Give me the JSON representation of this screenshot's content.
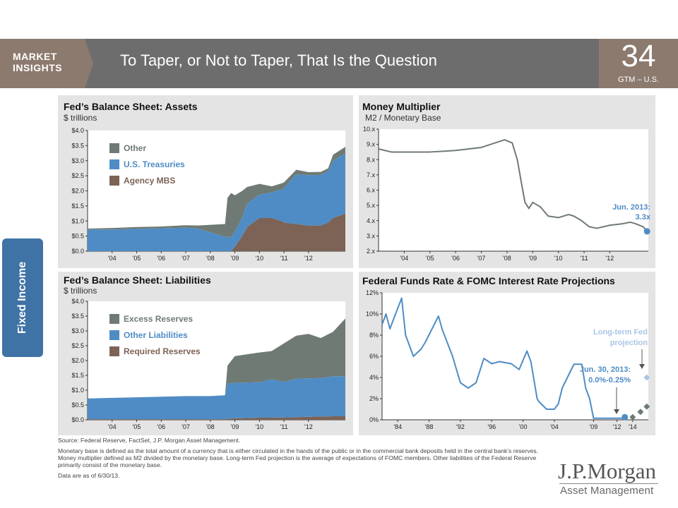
{
  "header": {
    "brand_line1": "MARKET",
    "brand_line2": "INSIGHTS",
    "title": "To Taper, or Not to Taper, That Is the Question",
    "page_number": "34",
    "page_tag": "GTM – U.S.",
    "colors": {
      "bar": "#6d6d6d",
      "accent": "#8c7a6e"
    }
  },
  "side_tab": {
    "label": "Fixed Income",
    "color": "#3f73a6"
  },
  "colors": {
    "gray": "#6f7a74",
    "blue": "#4f8cc5",
    "brown": "#7c6356",
    "panel_bg": "#e4e4e4"
  },
  "chart_data": [
    {
      "type": "area",
      "stacked": true,
      "title": "Fed’s Balance Sheet: Assets",
      "subtitle": "$ trillions",
      "x": [
        2003,
        2004,
        2005,
        2006,
        2007,
        2007.5,
        2008.6,
        2008.7,
        2008.85,
        2009,
        2009.3,
        2009.5,
        2010,
        2010.5,
        2010.9,
        2011,
        2011.5,
        2012,
        2012.5,
        2012.8,
        2013,
        2013.5
      ],
      "x_ticks": [
        "'04",
        "'05",
        "'06",
        "'07",
        "'08",
        "'09",
        "'10",
        "'11",
        "'12"
      ],
      "x_tick_values": [
        2004,
        2005,
        2006,
        2007,
        2008,
        2009,
        2010,
        2011,
        2012
      ],
      "y_ticks": [
        "$0.0",
        "$0.5",
        "$1.0",
        "$1.5",
        "$2.0",
        "$2.5",
        "$3.0",
        "$3.5",
        "$4.0"
      ],
      "ylim": [
        0,
        4
      ],
      "xlim": [
        2003,
        2013.5
      ],
      "series": [
        {
          "name": "Agency MBS",
          "color": "#7c6356",
          "values": [
            0,
            0,
            0,
            0,
            0,
            0,
            0,
            0,
            0,
            0.15,
            0.5,
            0.8,
            1.1,
            1.1,
            1.0,
            0.95,
            0.9,
            0.85,
            0.85,
            0.95,
            1.1,
            1.25
          ]
        },
        {
          "name": "U.S. Treasuries",
          "color": "#4f8cc5",
          "values": [
            0.72,
            0.72,
            0.74,
            0.76,
            0.78,
            0.75,
            0.48,
            0.47,
            0.48,
            0.5,
            0.62,
            0.78,
            0.78,
            0.85,
            1.05,
            1.15,
            1.65,
            1.67,
            1.68,
            1.7,
            1.9,
            1.99
          ]
        },
        {
          "name": "Other",
          "color": "#6f7a74",
          "values": [
            0.03,
            0.05,
            0.06,
            0.06,
            0.08,
            0.1,
            0.42,
            1.3,
            1.45,
            1.2,
            0.88,
            0.55,
            0.35,
            0.2,
            0.2,
            0.18,
            0.15,
            0.1,
            0.1,
            0.1,
            0.2,
            0.22
          ]
        }
      ]
    },
    {
      "type": "line",
      "title": "Money Multiplier",
      "subtitle": "M2 / Monetary Base",
      "x": [
        2003,
        2003.5,
        2004,
        2005,
        2006,
        2007,
        2007.9,
        2008.2,
        2008.4,
        2008.6,
        2008.7,
        2008.85,
        2009,
        2009.3,
        2009.6,
        2010,
        2010.4,
        2010.6,
        2010.9,
        2011.2,
        2011.5,
        2012,
        2012.5,
        2012.8,
        2013,
        2013.3,
        2013.45
      ],
      "y": [
        8.7,
        8.5,
        8.5,
        8.5,
        8.6,
        8.8,
        9.3,
        9.1,
        8.0,
        6.1,
        5.2,
        4.8,
        5.2,
        4.9,
        4.3,
        4.2,
        4.4,
        4.3,
        4.0,
        3.6,
        3.5,
        3.7,
        3.8,
        3.9,
        3.8,
        3.6,
        3.3
      ],
      "x_ticks": [
        "'04",
        "'05",
        "'06",
        "'07",
        "'08",
        "'09",
        "'10",
        "'11",
        "'12"
      ],
      "x_tick_values": [
        2004,
        2005,
        2006,
        2007,
        2008,
        2009,
        2010,
        2011,
        2012
      ],
      "y_ticks": [
        "2.x",
        "3.x",
        "4.x",
        "5.x",
        "6.x",
        "7.x",
        "8.x",
        "9.x",
        "10.x"
      ],
      "ylim": [
        2,
        10
      ],
      "xlim": [
        2003,
        2013.5
      ],
      "color": "#6f7a74",
      "annotation": {
        "line1": "Jun. 2013:",
        "line2": "3.3x",
        "x": 2013.45,
        "y": 3.3,
        "color": "#4f8cc5"
      }
    },
    {
      "type": "area",
      "stacked": true,
      "title": "Fed’s Balance Sheet: Liabilities",
      "subtitle": "$ trillions",
      "x": [
        2003,
        2004,
        2005,
        2006,
        2007,
        2008,
        2008.6,
        2008.7,
        2009,
        2009.5,
        2010,
        2010.5,
        2011,
        2011.5,
        2012,
        2012.5,
        2013,
        2013.5
      ],
      "x_ticks": [
        "'04",
        "'05",
        "'06",
        "'07",
        "'08",
        "'09",
        "'10",
        "'11",
        "'12"
      ],
      "x_tick_values": [
        2004,
        2005,
        2006,
        2007,
        2008,
        2009,
        2010,
        2011,
        2012
      ],
      "y_ticks": [
        "$0.0",
        "$0.5",
        "$1.0",
        "$1.5",
        "$2.0",
        "$2.5",
        "$3.0",
        "$3.5",
        "$4.0"
      ],
      "ylim": [
        0,
        4
      ],
      "xlim": [
        2003,
        2013.5
      ],
      "series": [
        {
          "name": "Required Reserves",
          "color": "#7c6356",
          "values": [
            0.02,
            0.02,
            0.02,
            0.02,
            0.02,
            0.02,
            0.02,
            0.03,
            0.05,
            0.06,
            0.07,
            0.07,
            0.08,
            0.09,
            0.1,
            0.11,
            0.12,
            0.12
          ]
        },
        {
          "name": "Other Liabilities",
          "color": "#4f8cc5",
          "values": [
            0.7,
            0.72,
            0.74,
            0.76,
            0.78,
            0.78,
            0.8,
            1.2,
            1.2,
            1.2,
            1.2,
            1.3,
            1.2,
            1.3,
            1.3,
            1.3,
            1.35,
            1.35
          ]
        },
        {
          "name": "Excess Reserves",
          "color": "#6f7a74",
          "values": [
            0,
            0,
            0,
            0,
            0,
            0,
            0.01,
            0.6,
            0.9,
            0.95,
            1.0,
            0.95,
            1.3,
            1.45,
            1.5,
            1.35,
            1.5,
            1.95
          ]
        }
      ]
    },
    {
      "type": "line",
      "title": "Federal Funds Rate & FOMC Interest Rate Projections",
      "x": [
        1982,
        1982.5,
        1983,
        1984.5,
        1985,
        1986,
        1987,
        1987.5,
        1989.2,
        1989.7,
        1991,
        1992,
        1993,
        1994,
        1995,
        1996,
        1997,
        1998.5,
        1999.5,
        2000.5,
        2001,
        2001.8,
        2002,
        2003,
        2004,
        2004.5,
        2005,
        2006,
        2006.5,
        2007.5,
        2008,
        2008.5,
        2009,
        2013
      ],
      "y": [
        9,
        10,
        8.6,
        11.5,
        8,
        6,
        6.7,
        7.3,
        9.8,
        8.5,
        6,
        3.5,
        3,
        3.5,
        5.8,
        5.3,
        5.5,
        5.3,
        4.75,
        6.5,
        5.5,
        2,
        1.75,
        1,
        1,
        1.5,
        3,
        4.5,
        5.25,
        5.25,
        3,
        2,
        0.15,
        0.15
      ],
      "x_ticks": [
        "'84",
        "'88",
        "'92",
        "'96",
        "'00",
        "'04",
        "'09",
        "'12",
        "'14"
      ],
      "x_tick_values": [
        1984,
        1988,
        1992,
        1996,
        2000,
        2004,
        2009,
        2012,
        2014
      ],
      "y_ticks": [
        "0%",
        "2%",
        "4%",
        "6%",
        "8%",
        "10%",
        "12%"
      ],
      "ylim": [
        0,
        12
      ],
      "xlim": [
        1982,
        2016
      ],
      "color": "#4f8cc5",
      "projections": [
        {
          "x": 2013,
          "y": 0.25,
          "color": "#4f8cc5"
        },
        {
          "x": 2014,
          "y": 0.25,
          "color": "#6f7a74"
        },
        {
          "x": 2015,
          "y": 0.75,
          "color": "#6f7a74"
        },
        {
          "x": 2015.8,
          "y": 1.25,
          "color": "#6f7a74"
        },
        {
          "x": 2015.8,
          "y": 4.0,
          "color": "#a9c6e4"
        }
      ],
      "annotations": [
        {
          "line1": "Long-term Fed",
          "line2": "projection",
          "color": "#a9c6e4"
        },
        {
          "line1": "Jun. 30, 2013:",
          "line2": "0.0%-0.25%",
          "color": "#4f8cc5"
        }
      ]
    }
  ],
  "footnotes": {
    "source": "Source: Federal Reserve, FactSet, J.P. Morgan Asset Management.",
    "definition": "Monetary base is defined as the total amount of a currency that is either circulated in the hands of the public or in the commercial bank deposits held in the central bank’s reserves. Money multiplier defined as M2 divided by the monetary base. Long-term Fed projection is the average of expectations of FOMC members. Other liabilities of the Federal Reserve primarily consist of the monetary base.",
    "date": "Data are as of 6/30/13."
  },
  "logo": {
    "line1": "J.P.Morgan",
    "line2": "Asset Management"
  }
}
